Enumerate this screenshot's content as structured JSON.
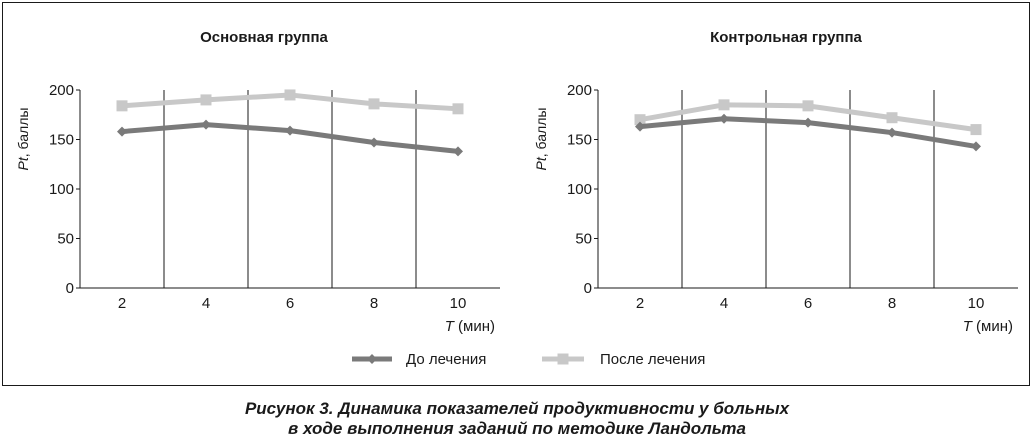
{
  "chart_data": [
    {
      "type": "line",
      "title": "Основная группа",
      "xlabel_italic": "T",
      "xlabel_rest": " (мин)",
      "ylabel_italic": "Pt",
      "ylabel_rest": ", баллы",
      "x": [
        2,
        4,
        6,
        8,
        10
      ],
      "xlim": [
        1,
        11
      ],
      "ylim": [
        0,
        200
      ],
      "yticks": [
        0,
        50,
        100,
        150,
        200
      ],
      "series": [
        {
          "name": "До лечения",
          "values": [
            158,
            165,
            159,
            147,
            138
          ],
          "color": "#7a7a7a",
          "marker": "diamond"
        },
        {
          "name": "После лечения",
          "values": [
            184,
            190,
            195,
            186,
            181
          ],
          "color": "#c8c8c8",
          "marker": "square"
        }
      ]
    },
    {
      "type": "line",
      "title": "Контрольная группа",
      "xlabel_italic": "T",
      "xlabel_rest": " (мин)",
      "ylabel_italic": "Pt",
      "ylabel_rest": ", баллы",
      "x": [
        2,
        4,
        6,
        8,
        10
      ],
      "xlim": [
        1,
        11
      ],
      "ylim": [
        0,
        200
      ],
      "yticks": [
        0,
        50,
        100,
        150,
        200
      ],
      "series": [
        {
          "name": "До лечения",
          "values": [
            163,
            171,
            167,
            157,
            143
          ],
          "color": "#7a7a7a",
          "marker": "diamond"
        },
        {
          "name": "После лечения",
          "values": [
            170,
            185,
            184,
            172,
            160
          ],
          "color": "#c8c8c8",
          "marker": "square"
        }
      ]
    }
  ],
  "legend": [
    {
      "label": "До лечения",
      "color": "#7a7a7a",
      "marker": "diamond"
    },
    {
      "label": "После лечения",
      "color": "#c8c8c8",
      "marker": "square"
    }
  ],
  "caption": {
    "line1": "Рисунок 3. Динамика показателей продуктивности у больных",
    "line2": "в ходе выполнения заданий по методике Ландольта"
  }
}
